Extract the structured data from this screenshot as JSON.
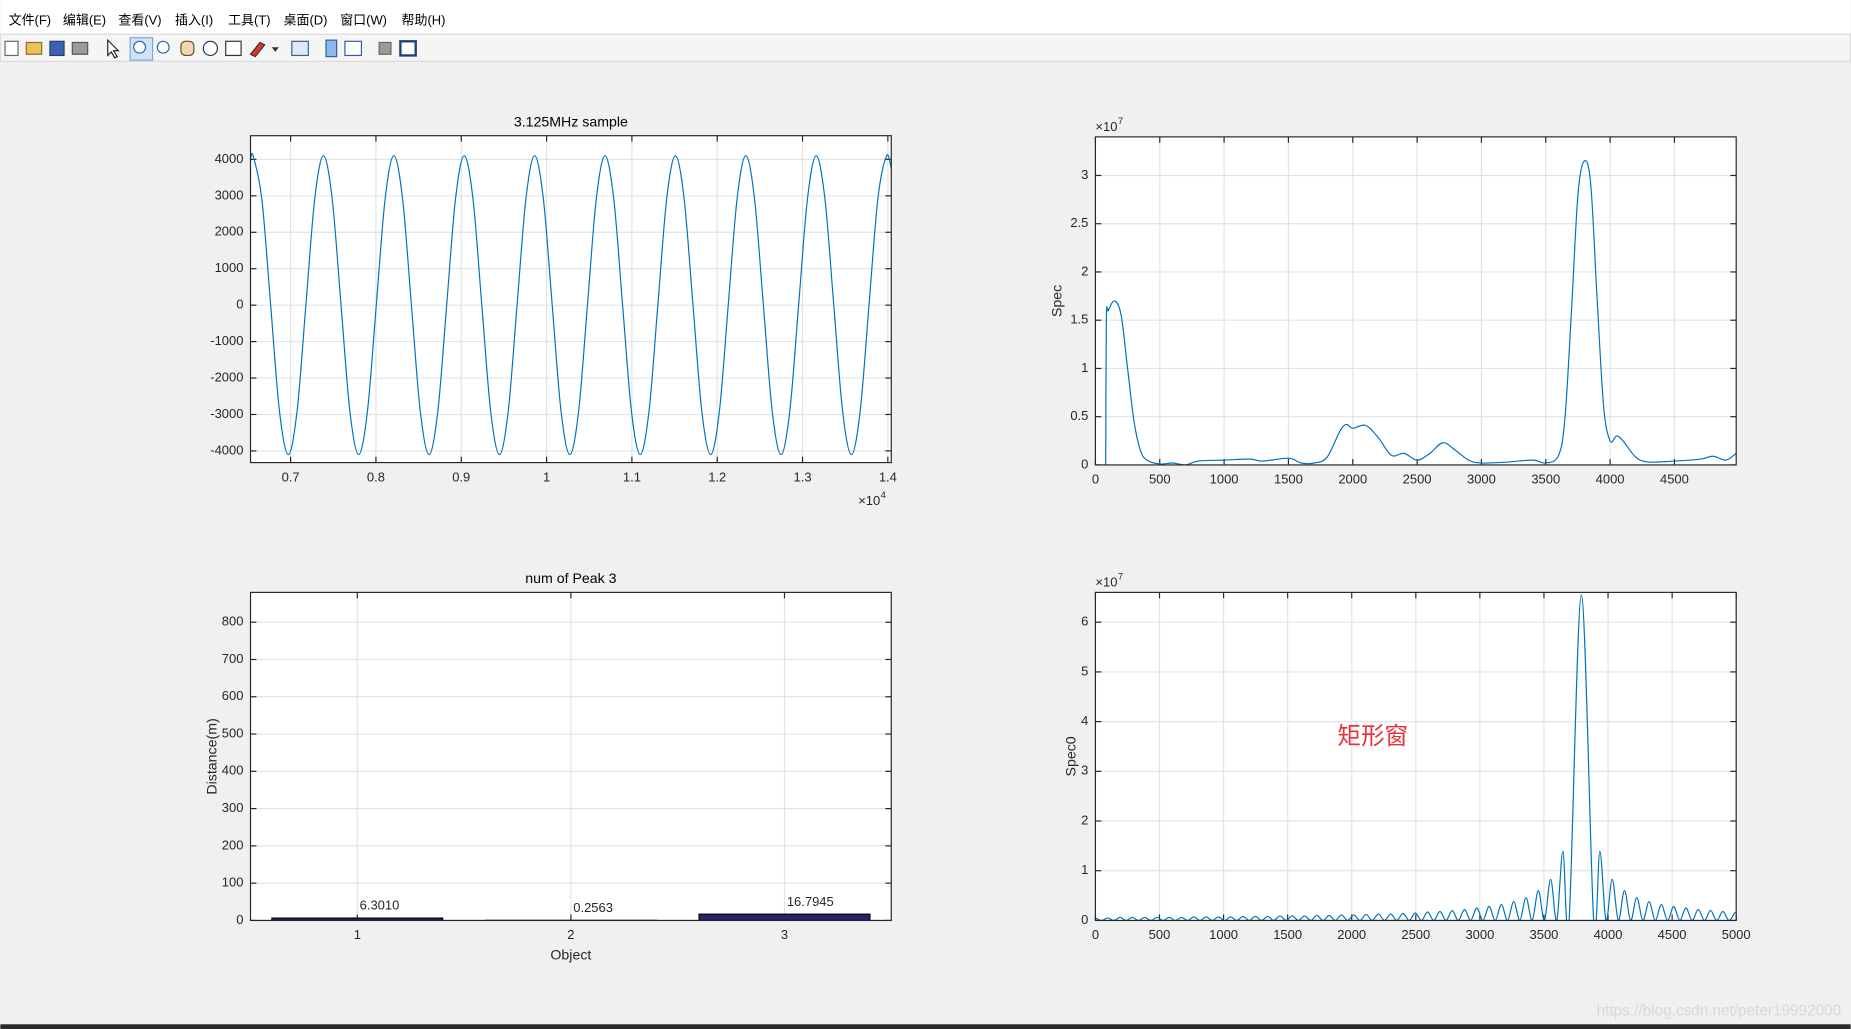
{
  "menu": [
    "文件(F)",
    "编辑(E)",
    "查看(V)",
    "插入(I)",
    "工具(T)",
    "桌面(D)",
    "窗口(W)",
    "帮助(H)"
  ],
  "watermark": "https://blog.csdn.net/peter19992000",
  "chart_data": [
    {
      "type": "line",
      "title": "3.125MHz sample",
      "color": "#0072bd",
      "grid": true,
      "xlim": [
        0.653,
        1.404
      ],
      "xticks": [
        0.7,
        0.8,
        0.9,
        1,
        1.1,
        1.2,
        1.3,
        1.4
      ],
      "x_scale": {
        "base": "×10",
        "exponent": 4
      },
      "ylim": [
        -4320,
        4650
      ],
      "yticks": [
        -4000,
        -3000,
        -2000,
        -1000,
        0,
        1000,
        2000,
        3000,
        4000
      ],
      "x": [
        0.653,
        0.656,
        0.6663,
        0.6766,
        0.6869,
        0.6973,
        0.7076,
        0.7179,
        0.7282,
        0.7385,
        0.7488,
        0.7591,
        0.7694,
        0.7798,
        0.7901,
        0.8004,
        0.8107,
        0.821,
        0.8313,
        0.8416,
        0.8519,
        0.8623,
        0.8726,
        0.8829,
        0.8932,
        0.9035,
        0.9138,
        0.9241,
        0.9344,
        0.9448,
        0.9551,
        0.9654,
        0.9757,
        0.986,
        0.9963,
        1.0066,
        1.0169,
        1.0273,
        1.0376,
        1.0479,
        1.0582,
        1.0685,
        1.0788,
        1.0891,
        1.0994,
        1.1098,
        1.1201,
        1.1304,
        1.1407,
        1.151,
        1.1613,
        1.1716,
        1.1819,
        1.1923,
        1.2026,
        1.2129,
        1.2232,
        1.2335,
        1.2438,
        1.2541,
        1.2644,
        1.2748,
        1.2851,
        1.2954,
        1.3057,
        1.316,
        1.3263,
        1.3366,
        1.3469,
        1.3573,
        1.3676,
        1.3779,
        1.3882,
        1.3985,
        1.404
      ],
      "values": [
        3990,
        4100,
        2900,
        0,
        -2900,
        -4100,
        -2900,
        0,
        2900,
        4100,
        2900,
        0,
        -2900,
        -4100,
        -2900,
        0,
        2900,
        4100,
        2900,
        0,
        -2900,
        -4100,
        -2900,
        0,
        2900,
        4100,
        2900,
        0,
        -2900,
        -4100,
        -2900,
        0,
        2900,
        4100,
        2900,
        0,
        -2900,
        -4100,
        -2900,
        0,
        2900,
        4100,
        2900,
        0,
        -2900,
        -4100,
        -2900,
        0,
        2900,
        4100,
        2900,
        0,
        -2900,
        -4100,
        -2900,
        0,
        2900,
        4100,
        2900,
        0,
        -2900,
        -4100,
        -2900,
        0,
        2900,
        4100,
        2900,
        0,
        -2900,
        -4100,
        -2900,
        0,
        2900,
        4100,
        3745
      ]
    },
    {
      "type": "line",
      "ylabel": "Spec",
      "color": "#0072bd",
      "grid": true,
      "xlim": [
        0,
        4980
      ],
      "xticks": [
        0,
        500,
        1000,
        1500,
        2000,
        2500,
        3000,
        3500,
        4000,
        4500
      ],
      "ylim": [
        0,
        3.4
      ],
      "yticks": [
        0,
        0.5,
        1,
        1.5,
        2,
        2.5,
        3
      ],
      "y_scale": {
        "base": "×10",
        "exponent": 7
      },
      "x": [
        80,
        85,
        100,
        150,
        200,
        250,
        300,
        350,
        400,
        500,
        600,
        700,
        800,
        1000,
        1200,
        1300,
        1500,
        1600,
        1700,
        1800,
        1900,
        1950,
        2000,
        2100,
        2200,
        2300,
        2400,
        2500,
        2600,
        2700,
        2800,
        2900,
        3000,
        3200,
        3400,
        3500,
        3600,
        3650,
        3700,
        3750,
        3800,
        3850,
        3900,
        3950,
        4000,
        4050,
        4100,
        4200,
        4300,
        4500,
        4700,
        4800,
        4900,
        4980
      ],
      "values": [
        0,
        1.5,
        1.6,
        1.7,
        1.55,
        1.0,
        0.45,
        0.15,
        0.05,
        0.01,
        0.02,
        0,
        0.04,
        0.05,
        0.06,
        0.04,
        0.07,
        0.02,
        0.02,
        0.08,
        0.35,
        0.42,
        0.38,
        0.41,
        0.28,
        0.1,
        0.12,
        0.05,
        0.12,
        0.23,
        0.15,
        0.05,
        0.02,
        0.03,
        0.05,
        0.02,
        0.1,
        0.5,
        1.6,
        2.8,
        3.15,
        2.9,
        1.7,
        0.6,
        0.25,
        0.3,
        0.25,
        0.08,
        0.03,
        0.04,
        0.06,
        0.09,
        0.05,
        0.12
      ]
    },
    {
      "type": "bar",
      "title": "num of Peak 3",
      "xlabel": "Object",
      "ylabel": "Distance(m)",
      "color": "#24246e",
      "grid": true,
      "xlim": [
        0.5,
        3.5
      ],
      "xticks": [
        1,
        2,
        3
      ],
      "ylim": [
        0,
        880
      ],
      "yticks": [
        0,
        100,
        200,
        300,
        400,
        500,
        600,
        700,
        800
      ],
      "x": [
        1,
        2,
        3
      ],
      "values": [
        6.301,
        0.2563,
        16.7945
      ],
      "value_labels": [
        "6.3010",
        "0.2563",
        "16.7945"
      ]
    },
    {
      "type": "line",
      "ylabel": "Spec0",
      "color": "#0072bd",
      "grid": true,
      "annotation": "矩形窗",
      "xlim": [
        0,
        5000
      ],
      "xticks": [
        0,
        500,
        1000,
        1500,
        2000,
        2500,
        3000,
        3500,
        4000,
        4500,
        5000
      ],
      "ylim": [
        0,
        6.6
      ],
      "yticks": [
        0,
        1,
        2,
        3,
        4,
        5,
        6
      ],
      "y_scale": {
        "base": "×10",
        "exponent": 7
      },
      "x": [
        0,
        48,
        96,
        144,
        192,
        240,
        288,
        336,
        384,
        432,
        480,
        528,
        576,
        624,
        672,
        720,
        768,
        816,
        864,
        912,
        960,
        1008,
        1056,
        1104,
        1152,
        1200,
        1248,
        1296,
        1344,
        1392,
        1440,
        1488,
        1536,
        1584,
        1632,
        1680,
        1728,
        1776,
        1824,
        1872,
        1920,
        1968,
        2016,
        2064,
        2112,
        2160,
        2208,
        2256,
        2304,
        2352,
        2400,
        2448,
        2496,
        2544,
        2592,
        2640,
        2688,
        2736,
        2784,
        2832,
        2880,
        2928,
        2976,
        3024,
        3072,
        3120,
        3168,
        3216,
        3264,
        3312,
        3360,
        3408,
        3456,
        3504,
        3552,
        3600,
        3648,
        3696,
        3792,
        3888,
        3936,
        3984,
        4032,
        4080,
        4128,
        4176,
        4224,
        4272,
        4320,
        4368,
        4416,
        4464,
        4512,
        4560,
        4608,
        4656,
        4704,
        4752,
        4800,
        4848,
        4896,
        4944,
        4992
      ],
      "values": [
        0.05,
        0,
        0.05,
        0,
        0.06,
        0,
        0.06,
        0,
        0.06,
        0,
        0.06,
        0,
        0.06,
        0,
        0.06,
        0,
        0.07,
        0,
        0.07,
        0,
        0.07,
        0,
        0.07,
        0,
        0.08,
        0,
        0.08,
        0,
        0.08,
        0,
        0.09,
        0,
        0.09,
        0,
        0.09,
        0,
        0.1,
        0,
        0.1,
        0,
        0.11,
        0,
        0.11,
        0,
        0.12,
        0,
        0.13,
        0,
        0.13,
        0,
        0.14,
        0,
        0.15,
        0,
        0.17,
        0,
        0.18,
        0,
        0.2,
        0,
        0.22,
        0,
        0.25,
        0,
        0.28,
        0,
        0.32,
        0,
        0.38,
        0,
        0.46,
        0,
        0.6,
        0,
        0.83,
        0,
        1.39,
        0,
        6.55,
        0,
        1.39,
        0,
        0.83,
        0,
        0.6,
        0,
        0.46,
        0,
        0.38,
        0,
        0.32,
        0,
        0.28,
        0,
        0.25,
        0,
        0.22,
        0,
        0.2,
        0,
        0.18,
        0,
        0.17
      ]
    }
  ]
}
